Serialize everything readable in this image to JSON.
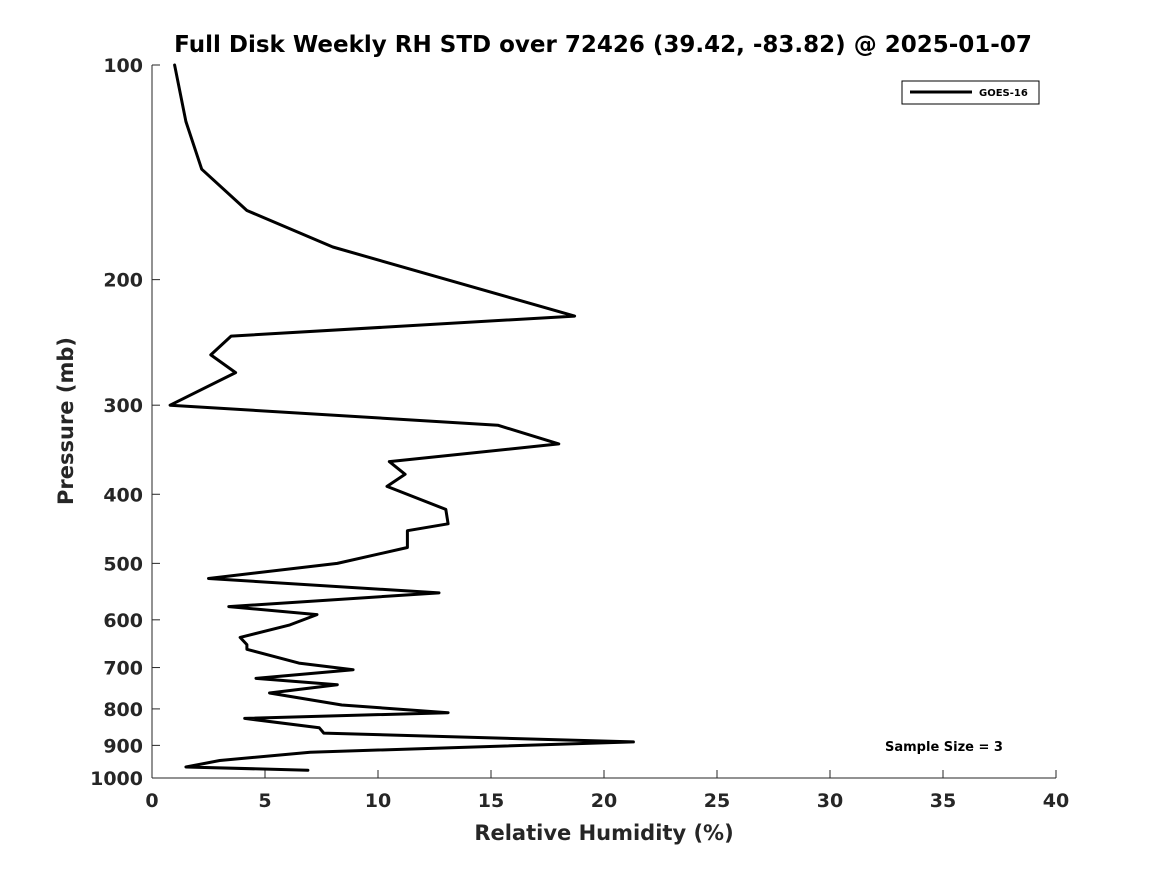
{
  "chart_data": {
    "type": "line",
    "title": "Full Disk Weekly RH STD over 72426 (39.42, -83.82) @ 2025-01-07",
    "xlabel": "Relative Humidity (%)",
    "ylabel": "Pressure (mb)",
    "xlim": [
      0,
      40
    ],
    "ylim": [
      100,
      1000
    ],
    "yscale": "log",
    "y_reversed": true,
    "xticks": [
      0,
      5,
      10,
      15,
      20,
      25,
      30,
      35,
      40
    ],
    "yticks": [
      100,
      200,
      300,
      400,
      500,
      600,
      700,
      800,
      900,
      1000
    ],
    "grid": false,
    "legend": {
      "location": "top-right",
      "entries": [
        "GOES-16"
      ]
    },
    "annotations": [
      {
        "text": "Sample Size = 3",
        "location": "bottom-right"
      }
    ],
    "series": [
      {
        "name": "GOES-16",
        "color": "#000000",
        "points": [
          {
            "rh": 1.0,
            "p": 100
          },
          {
            "rh": 1.5,
            "p": 120
          },
          {
            "rh": 2.2,
            "p": 140
          },
          {
            "rh": 4.2,
            "p": 160
          },
          {
            "rh": 8.0,
            "p": 180
          },
          {
            "rh": 18.7,
            "p": 225
          },
          {
            "rh": 3.5,
            "p": 240
          },
          {
            "rh": 2.6,
            "p": 255
          },
          {
            "rh": 3.7,
            "p": 270
          },
          {
            "rh": 0.8,
            "p": 300
          },
          {
            "rh": 15.3,
            "p": 320
          },
          {
            "rh": 18.0,
            "p": 340
          },
          {
            "rh": 10.5,
            "p": 360
          },
          {
            "rh": 11.2,
            "p": 375
          },
          {
            "rh": 10.4,
            "p": 390
          },
          {
            "rh": 13.0,
            "p": 420
          },
          {
            "rh": 13.1,
            "p": 440
          },
          {
            "rh": 11.3,
            "p": 450
          },
          {
            "rh": 11.3,
            "p": 475
          },
          {
            "rh": 8.2,
            "p": 500
          },
          {
            "rh": 2.5,
            "p": 525
          },
          {
            "rh": 12.7,
            "p": 550
          },
          {
            "rh": 3.4,
            "p": 575
          },
          {
            "rh": 7.3,
            "p": 590
          },
          {
            "rh": 6.1,
            "p": 610
          },
          {
            "rh": 3.9,
            "p": 635
          },
          {
            "rh": 4.2,
            "p": 650
          },
          {
            "rh": 4.2,
            "p": 660
          },
          {
            "rh": 6.5,
            "p": 690
          },
          {
            "rh": 8.9,
            "p": 705
          },
          {
            "rh": 4.6,
            "p": 725
          },
          {
            "rh": 8.2,
            "p": 740
          },
          {
            "rh": 5.2,
            "p": 760
          },
          {
            "rh": 8.4,
            "p": 790
          },
          {
            "rh": 13.1,
            "p": 810
          },
          {
            "rh": 4.1,
            "p": 825
          },
          {
            "rh": 7.4,
            "p": 850
          },
          {
            "rh": 7.6,
            "p": 865
          },
          {
            "rh": 21.3,
            "p": 890
          },
          {
            "rh": 7.0,
            "p": 920
          },
          {
            "rh": 3.0,
            "p": 945
          },
          {
            "rh": 1.5,
            "p": 965
          },
          {
            "rh": 6.9,
            "p": 975
          }
        ]
      }
    ]
  }
}
